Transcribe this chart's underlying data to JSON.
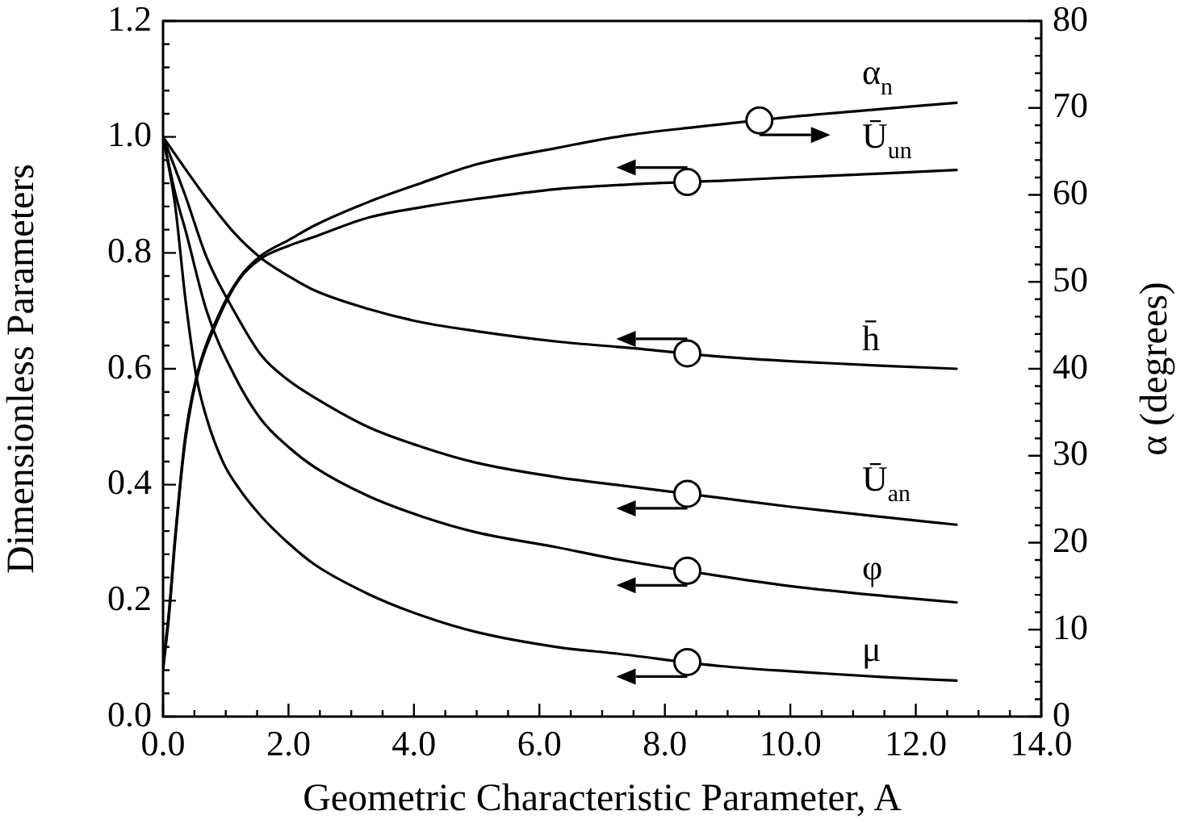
{
  "chart_data": {
    "type": "line",
    "xlabel": "Geometric Characteristic Parameter, A",
    "ylabel": "Dimensionless Parameters",
    "y2label": "α (degrees)",
    "xlim": [
      0,
      14
    ],
    "xticks": [
      {
        "value": 0,
        "label": "0.0"
      },
      {
        "value": 0.5,
        "label": null
      },
      {
        "value": 1,
        "label": null
      },
      {
        "value": 1.5,
        "label": null
      },
      {
        "value": 2,
        "label": "2.0"
      },
      {
        "value": 2.5,
        "label": null
      },
      {
        "value": 3,
        "label": null
      },
      {
        "value": 3.5,
        "label": null
      },
      {
        "value": 4,
        "label": "4.0"
      },
      {
        "value": 4.5,
        "label": null
      },
      {
        "value": 5,
        "label": null
      },
      {
        "value": 5.5,
        "label": null
      },
      {
        "value": 6,
        "label": "6.0"
      },
      {
        "value": 6.5,
        "label": null
      },
      {
        "value": 7,
        "label": null
      },
      {
        "value": 7.5,
        "label": null
      },
      {
        "value": 8,
        "label": "8.0"
      },
      {
        "value": 8.5,
        "label": null
      },
      {
        "value": 9,
        "label": null
      },
      {
        "value": 9.5,
        "label": null
      },
      {
        "value": 10,
        "label": "10.0"
      },
      {
        "value": 10.5,
        "label": null
      },
      {
        "value": 11,
        "label": null
      },
      {
        "value": 11.5,
        "label": null
      },
      {
        "value": 12,
        "label": "12.0"
      },
      {
        "value": 12.5,
        "label": null
      },
      {
        "value": 13,
        "label": null
      },
      {
        "value": 13.5,
        "label": null
      },
      {
        "value": 14,
        "label": "14.0"
      }
    ],
    "ylim": [
      0,
      1.2
    ],
    "yticks": [
      {
        "value": 0,
        "label": "0.0"
      },
      {
        "value": 0.04,
        "label": null
      },
      {
        "value": 0.08,
        "label": null
      },
      {
        "value": 0.12,
        "label": null
      },
      {
        "value": 0.16,
        "label": null
      },
      {
        "value": 0.2,
        "label": "0.2"
      },
      {
        "value": 0.24,
        "label": null
      },
      {
        "value": 0.28,
        "label": null
      },
      {
        "value": 0.32,
        "label": null
      },
      {
        "value": 0.36,
        "label": null
      },
      {
        "value": 0.4,
        "label": "0.4"
      },
      {
        "value": 0.44,
        "label": null
      },
      {
        "value": 0.48,
        "label": null
      },
      {
        "value": 0.52,
        "label": null
      },
      {
        "value": 0.56,
        "label": null
      },
      {
        "value": 0.6,
        "label": "0.6"
      },
      {
        "value": 0.64,
        "label": null
      },
      {
        "value": 0.68,
        "label": null
      },
      {
        "value": 0.72,
        "label": null
      },
      {
        "value": 0.76,
        "label": null
      },
      {
        "value": 0.8,
        "label": "0.8"
      },
      {
        "value": 0.84,
        "label": null
      },
      {
        "value": 0.88,
        "label": null
      },
      {
        "value": 0.92,
        "label": null
      },
      {
        "value": 0.96,
        "label": null
      },
      {
        "value": 1,
        "label": "1.0"
      },
      {
        "value": 1.04,
        "label": null
      },
      {
        "value": 1.08,
        "label": null
      },
      {
        "value": 1.12,
        "label": null
      },
      {
        "value": 1.16,
        "label": null
      },
      {
        "value": 1.2,
        "label": "1.2"
      }
    ],
    "y2lim": [
      0,
      80
    ],
    "y2ticks": [
      0,
      {
        "value": 2,
        "label": null
      },
      {
        "value": 4,
        "label": null
      },
      {
        "value": 6,
        "label": null
      },
      {
        "value": 8,
        "label": null
      },
      10,
      {
        "value": 12,
        "label": null
      },
      {
        "value": 14,
        "label": null
      },
      {
        "value": 16,
        "label": null
      },
      {
        "value": 18,
        "label": null
      },
      20,
      {
        "value": 22,
        "label": null
      },
      {
        "value": 24,
        "label": null
      },
      {
        "value": 26,
        "label": null
      },
      {
        "value": 28,
        "label": null
      },
      30,
      {
        "value": 32,
        "label": null
      },
      {
        "value": 34,
        "label": null
      },
      {
        "value": 36,
        "label": null
      },
      {
        "value": 38,
        "label": null
      },
      40,
      {
        "value": 42,
        "label": null
      },
      {
        "value": 44,
        "label": null
      },
      {
        "value": 46,
        "label": null
      },
      {
        "value": 48,
        "label": null
      },
      50,
      {
        "value": 52,
        "label": null
      },
      {
        "value": 54,
        "label": null
      },
      {
        "value": 56,
        "label": null
      },
      {
        "value": 58,
        "label": null
      },
      60,
      {
        "value": 62,
        "label": null
      },
      {
        "value": 64,
        "label": null
      },
      {
        "value": 66,
        "label": null
      },
      {
        "value": 68,
        "label": null
      },
      70,
      {
        "value": 72,
        "label": null
      },
      {
        "value": 74,
        "label": null
      },
      {
        "value": 76,
        "label": null
      },
      {
        "value": 78,
        "label": null
      },
      80
    ],
    "series": [
      {
        "name": "α$_{n}$",
        "color": "#000000",
        "axis": "y2",
        "x": [
          0,
          0.1,
          0.19,
          0.275,
          0.36,
          0.53,
          0.875,
          1.22,
          1.56,
          2.0,
          2.42,
          3.28,
          4.13,
          4.99,
          6.28,
          7.44,
          8.5,
          10.2,
          11.0,
          12.65
        ],
        "values": [
          6,
          12.5,
          20.5,
          27,
          32.5,
          39,
          46,
          50.5,
          53,
          54.8,
          56.5,
          59.2,
          61.4,
          63.5,
          65.4,
          66.9,
          67.8,
          69.1,
          69.6,
          70.6
        ]
      },
      {
        "name": "Ū$_{un}$",
        "color": "#000000",
        "x": [
          0,
          0.1,
          0.19,
          0.275,
          0.36,
          0.53,
          0.875,
          1.22,
          1.56,
          2.0,
          2.42,
          3.28,
          4.13,
          4.99,
          6.28,
          7.44,
          9.0,
          10.0,
          11.5,
          12.65
        ],
        "values": [
          0.08,
          0.18,
          0.3,
          0.4,
          0.48,
          0.58,
          0.685,
          0.755,
          0.79,
          0.812,
          0.828,
          0.861,
          0.879,
          0.893,
          0.91,
          0.918,
          0.925,
          0.93,
          0.937,
          0.943
        ]
      },
      {
        "name": "h̄",
        "color": "#000000",
        "x": [
          0,
          0.27,
          0.7,
          1.13,
          1.56,
          2.0,
          2.42,
          3.28,
          4.13,
          4.99,
          6.28,
          7.44,
          9.0,
          10.0,
          11.5,
          12.65
        ],
        "values": [
          1.0,
          0.958,
          0.893,
          0.835,
          0.791,
          0.76,
          0.735,
          0.703,
          0.68,
          0.665,
          0.647,
          0.636,
          0.62,
          0.613,
          0.605,
          0.6
        ]
      },
      {
        "name": "Ū$_{an}$",
        "color": "#000000",
        "x": [
          0,
          0.35,
          0.7,
          1.13,
          1.56,
          2.0,
          2.42,
          3.28,
          4.13,
          4.99,
          6.28,
          7.2,
          8.9,
          10.0,
          11.5,
          12.65
        ],
        "values": [
          1.0,
          0.9,
          0.791,
          0.7,
          0.624,
          0.58,
          0.55,
          0.499,
          0.465,
          0.438,
          0.413,
          0.4,
          0.377,
          0.362,
          0.344,
          0.331
        ]
      },
      {
        "name": "φ",
        "color": "#000000",
        "x": [
          0,
          0.2,
          0.36,
          0.7,
          1.13,
          1.56,
          2.0,
          2.42,
          3.28,
          4.13,
          4.99,
          6.28,
          7.2,
          8.9,
          10.0,
          11.5,
          12.65
        ],
        "values": [
          1.0,
          0.9,
          0.838,
          0.698,
          0.59,
          0.513,
          0.465,
          0.43,
          0.38,
          0.345,
          0.318,
          0.292,
          0.272,
          0.242,
          0.225,
          0.208,
          0.197
        ]
      },
      {
        "name": "μ",
        "color": "#000000",
        "x": [
          0,
          0.19,
          0.36,
          0.53,
          0.7,
          0.96,
          1.22,
          1.56,
          1.99,
          2.42,
          3.28,
          4.13,
          4.99,
          6.28,
          7.2,
          8.9,
          10.0,
          11.5,
          12.65
        ],
        "values": [
          1.0,
          0.884,
          0.717,
          0.587,
          0.513,
          0.438,
          0.392,
          0.346,
          0.3,
          0.262,
          0.211,
          0.174,
          0.146,
          0.12,
          0.109,
          0.087,
          0.078,
          0.068,
          0.062
        ]
      }
    ]
  }
}
